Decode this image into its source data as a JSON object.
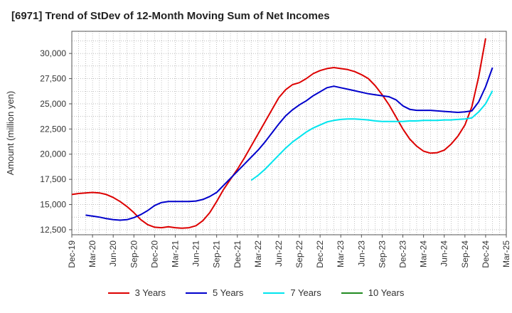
{
  "title": "[6971]  Trend of StDev of 12-Month Moving Sum of Net Incomes",
  "chart_data": {
    "type": "line",
    "title": "[6971]  Trend of StDev of 12-Month Moving Sum of Net Incomes",
    "ylabel": "Amount (million yen)",
    "xlabel": "",
    "ylim": [
      12000,
      32200
    ],
    "xlim": [
      "Dec-19",
      "Mar-25"
    ],
    "x_tick_labels": [
      "Dec-19",
      "Mar-20",
      "Jun-20",
      "Sep-20",
      "Dec-20",
      "Mar-21",
      "Jun-21",
      "Sep-21",
      "Dec-21",
      "Mar-22",
      "Jun-22",
      "Sep-22",
      "Dec-22",
      "Mar-23",
      "Jun-23",
      "Sep-23",
      "Dec-23",
      "Mar-24",
      "Jun-24",
      "Sep-24",
      "Dec-24",
      "Mar-25"
    ],
    "y_tick_labels": [
      "12,500",
      "15,000",
      "17,500",
      "20,000",
      "22,500",
      "25,000",
      "27,500",
      "30,000"
    ],
    "y_ticks": [
      12500,
      15000,
      17500,
      20000,
      22500,
      25000,
      27500,
      30000
    ],
    "grid": true,
    "legend_position": "bottom",
    "series": [
      {
        "name": "3 Years",
        "color": "#dd0000",
        "points": [
          [
            "Dec-19",
            16000
          ],
          [
            "Jan-20",
            16100
          ],
          [
            "Feb-20",
            16150
          ],
          [
            "Mar-20",
            16200
          ],
          [
            "Apr-20",
            16150
          ],
          [
            "May-20",
            16000
          ],
          [
            "Jun-20",
            15700
          ],
          [
            "Jul-20",
            15300
          ],
          [
            "Aug-20",
            14800
          ],
          [
            "Sep-20",
            14200
          ],
          [
            "Oct-20",
            13500
          ],
          [
            "Nov-20",
            13000
          ],
          [
            "Dec-20",
            12750
          ],
          [
            "Jan-21",
            12700
          ],
          [
            "Feb-21",
            12800
          ],
          [
            "Mar-21",
            12700
          ],
          [
            "Apr-21",
            12650
          ],
          [
            "May-21",
            12700
          ],
          [
            "Jun-21",
            12900
          ],
          [
            "Jul-21",
            13400
          ],
          [
            "Aug-21",
            14200
          ],
          [
            "Sep-21",
            15300
          ],
          [
            "Oct-21",
            16500
          ],
          [
            "Nov-21",
            17500
          ],
          [
            "Dec-21",
            18500
          ],
          [
            "Jan-22",
            19600
          ],
          [
            "Feb-22",
            20800
          ],
          [
            "Mar-22",
            22000
          ],
          [
            "Apr-22",
            23200
          ],
          [
            "May-22",
            24400
          ],
          [
            "Jun-22",
            25600
          ],
          [
            "Jul-22",
            26400
          ],
          [
            "Aug-22",
            26900
          ],
          [
            "Sep-22",
            27100
          ],
          [
            "Oct-22",
            27500
          ],
          [
            "Nov-22",
            28000
          ],
          [
            "Dec-22",
            28300
          ],
          [
            "Jan-23",
            28500
          ],
          [
            "Feb-23",
            28600
          ],
          [
            "Mar-23",
            28500
          ],
          [
            "Apr-23",
            28400
          ],
          [
            "May-23",
            28200
          ],
          [
            "Jun-23",
            27900
          ],
          [
            "Jul-23",
            27500
          ],
          [
            "Aug-23",
            26800
          ],
          [
            "Sep-23",
            25900
          ],
          [
            "Oct-23",
            24900
          ],
          [
            "Nov-23",
            23700
          ],
          [
            "Dec-23",
            22500
          ],
          [
            "Jan-24",
            21500
          ],
          [
            "Feb-24",
            20800
          ],
          [
            "Mar-24",
            20300
          ],
          [
            "Apr-24",
            20100
          ],
          [
            "May-24",
            20150
          ],
          [
            "Jun-24",
            20400
          ],
          [
            "Jul-24",
            21000
          ],
          [
            "Aug-24",
            21800
          ],
          [
            "Sep-24",
            22900
          ],
          [
            "Oct-24",
            24700
          ],
          [
            "Nov-24",
            27700
          ],
          [
            "Dec-24",
            31500
          ]
        ]
      },
      {
        "name": "5 Years",
        "color": "#0000cc",
        "points": [
          [
            "Feb-20",
            13950
          ],
          [
            "Mar-20",
            13850
          ],
          [
            "Apr-20",
            13750
          ],
          [
            "May-20",
            13600
          ],
          [
            "Jun-20",
            13500
          ],
          [
            "Jul-20",
            13450
          ],
          [
            "Aug-20",
            13500
          ],
          [
            "Sep-20",
            13700
          ],
          [
            "Oct-20",
            14000
          ],
          [
            "Nov-20",
            14400
          ],
          [
            "Dec-20",
            14900
          ],
          [
            "Jan-21",
            15200
          ],
          [
            "Feb-21",
            15300
          ],
          [
            "Mar-21",
            15300
          ],
          [
            "Apr-21",
            15300
          ],
          [
            "May-21",
            15300
          ],
          [
            "Jun-21",
            15350
          ],
          [
            "Jul-21",
            15500
          ],
          [
            "Aug-21",
            15800
          ],
          [
            "Sep-21",
            16200
          ],
          [
            "Oct-21",
            16900
          ],
          [
            "Nov-21",
            17600
          ],
          [
            "Dec-21",
            18300
          ],
          [
            "Jan-22",
            19000
          ],
          [
            "Feb-22",
            19700
          ],
          [
            "Mar-22",
            20400
          ],
          [
            "Apr-22",
            21200
          ],
          [
            "May-22",
            22100
          ],
          [
            "Jun-22",
            23000
          ],
          [
            "Jul-22",
            23800
          ],
          [
            "Aug-22",
            24400
          ],
          [
            "Sep-22",
            24900
          ],
          [
            "Oct-22",
            25300
          ],
          [
            "Nov-22",
            25800
          ],
          [
            "Dec-22",
            26200
          ],
          [
            "Jan-23",
            26600
          ],
          [
            "Feb-23",
            26750
          ],
          [
            "Mar-23",
            26600
          ],
          [
            "Apr-23",
            26450
          ],
          [
            "May-23",
            26300
          ],
          [
            "Jun-23",
            26150
          ],
          [
            "Jul-23",
            26000
          ],
          [
            "Aug-23",
            25900
          ],
          [
            "Sep-23",
            25800
          ],
          [
            "Oct-23",
            25700
          ],
          [
            "Nov-23",
            25400
          ],
          [
            "Dec-23",
            24800
          ],
          [
            "Jan-24",
            24450
          ],
          [
            "Feb-24",
            24350
          ],
          [
            "Mar-24",
            24350
          ],
          [
            "Apr-24",
            24350
          ],
          [
            "May-24",
            24300
          ],
          [
            "Jun-24",
            24250
          ],
          [
            "Jul-24",
            24200
          ],
          [
            "Aug-24",
            24150
          ],
          [
            "Sep-24",
            24200
          ],
          [
            "Oct-24",
            24300
          ],
          [
            "Nov-24",
            25200
          ],
          [
            "Dec-24",
            26700
          ],
          [
            "Jan-25",
            28600
          ]
        ]
      },
      {
        "name": "7 Years",
        "color": "#00e5ee",
        "points": [
          [
            "Feb-22",
            17400
          ],
          [
            "Mar-22",
            17900
          ],
          [
            "Apr-22",
            18500
          ],
          [
            "May-22",
            19200
          ],
          [
            "Jun-22",
            19900
          ],
          [
            "Jul-22",
            20600
          ],
          [
            "Aug-22",
            21200
          ],
          [
            "Sep-22",
            21700
          ],
          [
            "Oct-22",
            22200
          ],
          [
            "Nov-22",
            22600
          ],
          [
            "Dec-22",
            22900
          ],
          [
            "Jan-23",
            23200
          ],
          [
            "Feb-23",
            23350
          ],
          [
            "Mar-23",
            23450
          ],
          [
            "Apr-23",
            23500
          ],
          [
            "May-23",
            23500
          ],
          [
            "Jun-23",
            23450
          ],
          [
            "Jul-23",
            23400
          ],
          [
            "Aug-23",
            23300
          ],
          [
            "Sep-23",
            23250
          ],
          [
            "Oct-23",
            23250
          ],
          [
            "Nov-23",
            23250
          ],
          [
            "Dec-23",
            23250
          ],
          [
            "Jan-24",
            23300
          ],
          [
            "Feb-24",
            23300
          ],
          [
            "Mar-24",
            23350
          ],
          [
            "Apr-24",
            23350
          ],
          [
            "May-24",
            23350
          ],
          [
            "Jun-24",
            23400
          ],
          [
            "Jul-24",
            23400
          ],
          [
            "Aug-24",
            23450
          ],
          [
            "Sep-24",
            23500
          ],
          [
            "Oct-24",
            23600
          ],
          [
            "Nov-24",
            24200
          ],
          [
            "Dec-24",
            25000
          ],
          [
            "Jan-25",
            26300
          ]
        ]
      },
      {
        "name": "10 Years",
        "color": "#228b22",
        "points": []
      }
    ]
  }
}
